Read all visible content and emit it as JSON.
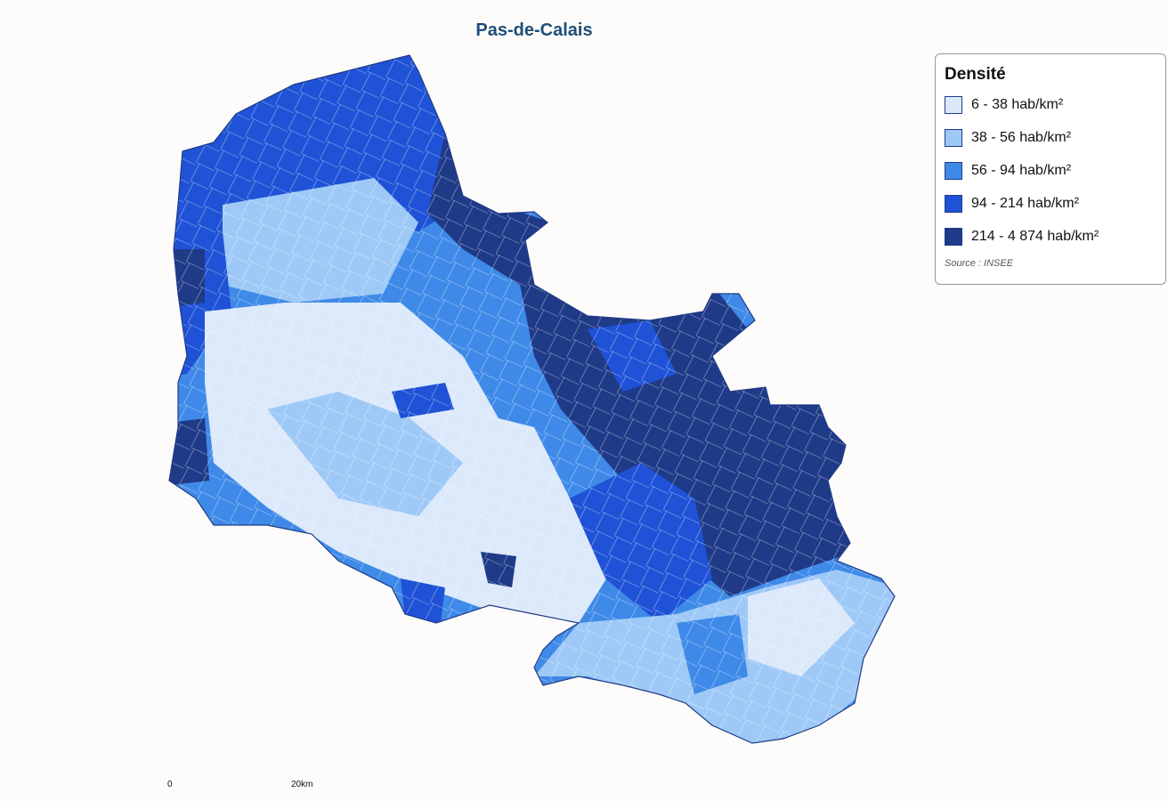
{
  "title": "Pas-de-Calais",
  "legend": {
    "title": "Densité",
    "items": [
      {
        "label": "6 - 38 hab/km²",
        "color": "#dbe9fb"
      },
      {
        "label": "38 - 56 hab/km²",
        "color": "#9ec9f7"
      },
      {
        "label": "56 - 94 hab/km²",
        "color": "#3f8ae8"
      },
      {
        "label": "94 - 214 hab/km²",
        "color": "#1f52d6"
      },
      {
        "label": "214 - 4 874 hab/km²",
        "color": "#1f3a87"
      }
    ],
    "source": "Source : INSEE"
  },
  "scale": {
    "labels": [
      "0",
      "20km"
    ]
  }
}
